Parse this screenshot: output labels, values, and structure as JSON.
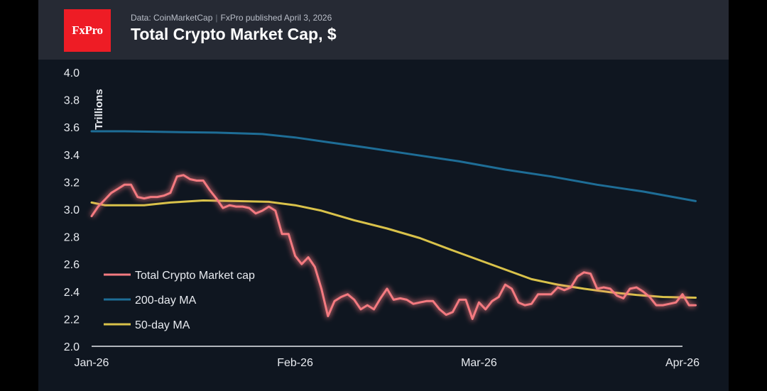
{
  "header": {
    "logo_text": "FxPro",
    "source": "Data: CoinMarketCap",
    "published": "FxPro published April 3, 2026",
    "title": "Total Crypto Market Cap, $"
  },
  "colors": {
    "background": "#0f1620",
    "header_background": "#262a34",
    "logo_red": "#ee1c25",
    "total": "#f47a80",
    "ma200": "#1e6d96",
    "ma50": "#d9c24a"
  },
  "chart_data": {
    "type": "line",
    "title": "Total Crypto Market Cap, $",
    "ylabel": "Trillions",
    "ylim": [
      2.0,
      4.0
    ],
    "yticks": [
      "2.0",
      "2.2",
      "2.4",
      "2.6",
      "2.8",
      "3.0",
      "3.2",
      "3.4",
      "3.6",
      "3.8",
      "4.0"
    ],
    "xlim": [
      "2026-01-01",
      "2026-04-01"
    ],
    "xticks": [
      {
        "label": "Jan-26",
        "date": "2026-01-01"
      },
      {
        "label": "Feb-26",
        "date": "2026-02-01"
      },
      {
        "label": "Mar-26",
        "date": "2026-03-01"
      },
      {
        "label": "Apr-26",
        "date": "2026-04-01"
      }
    ],
    "grid": false,
    "legend_position": "bottom-left",
    "series": [
      {
        "name": "Total Crypto Market cap",
        "color": "#f47a80",
        "glow": true,
        "points": [
          [
            "2026-01-01",
            2.95
          ],
          [
            "2026-01-02",
            3.02
          ],
          [
            "2026-01-03",
            3.07
          ],
          [
            "2026-01-04",
            3.12
          ],
          [
            "2026-01-05",
            3.15
          ],
          [
            "2026-01-06",
            3.18
          ],
          [
            "2026-01-07",
            3.18
          ],
          [
            "2026-01-08",
            3.09
          ],
          [
            "2026-01-09",
            3.08
          ],
          [
            "2026-01-10",
            3.09
          ],
          [
            "2026-01-11",
            3.09
          ],
          [
            "2026-01-12",
            3.1
          ],
          [
            "2026-01-13",
            3.12
          ],
          [
            "2026-01-14",
            3.24
          ],
          [
            "2026-01-15",
            3.25
          ],
          [
            "2026-01-16",
            3.22
          ],
          [
            "2026-01-17",
            3.21
          ],
          [
            "2026-01-18",
            3.21
          ],
          [
            "2026-01-19",
            3.14
          ],
          [
            "2026-01-20",
            3.08
          ],
          [
            "2026-01-21",
            3.01
          ],
          [
            "2026-01-22",
            3.03
          ],
          [
            "2026-01-23",
            3.02
          ],
          [
            "2026-01-24",
            3.02
          ],
          [
            "2026-01-25",
            3.01
          ],
          [
            "2026-01-26",
            2.97
          ],
          [
            "2026-01-27",
            2.99
          ],
          [
            "2026-01-28",
            3.02
          ],
          [
            "2026-01-29",
            2.99
          ],
          [
            "2026-01-30",
            2.82
          ],
          [
            "2026-01-31",
            2.82
          ],
          [
            "2026-02-01",
            2.66
          ],
          [
            "2026-02-02",
            2.6
          ],
          [
            "2026-02-03",
            2.65
          ],
          [
            "2026-02-04",
            2.58
          ],
          [
            "2026-02-05",
            2.42
          ],
          [
            "2026-02-06",
            2.22
          ],
          [
            "2026-02-07",
            2.33
          ],
          [
            "2026-02-08",
            2.36
          ],
          [
            "2026-02-09",
            2.38
          ],
          [
            "2026-02-10",
            2.34
          ],
          [
            "2026-02-11",
            2.27
          ],
          [
            "2026-02-12",
            2.3
          ],
          [
            "2026-02-13",
            2.27
          ],
          [
            "2026-02-14",
            2.35
          ],
          [
            "2026-02-15",
            2.42
          ],
          [
            "2026-02-16",
            2.34
          ],
          [
            "2026-02-17",
            2.35
          ],
          [
            "2026-02-18",
            2.34
          ],
          [
            "2026-02-19",
            2.31
          ],
          [
            "2026-02-20",
            2.32
          ],
          [
            "2026-02-21",
            2.33
          ],
          [
            "2026-02-22",
            2.33
          ],
          [
            "2026-02-23",
            2.27
          ],
          [
            "2026-02-24",
            2.23
          ],
          [
            "2026-02-25",
            2.25
          ],
          [
            "2026-02-26",
            2.34
          ],
          [
            "2026-02-27",
            2.34
          ],
          [
            "2026-02-28",
            2.2
          ],
          [
            "2026-03-01",
            2.32
          ],
          [
            "2026-03-02",
            2.27
          ],
          [
            "2026-03-03",
            2.33
          ],
          [
            "2026-03-04",
            2.36
          ],
          [
            "2026-03-05",
            2.45
          ],
          [
            "2026-03-06",
            2.42
          ],
          [
            "2026-03-07",
            2.32
          ],
          [
            "2026-03-08",
            2.3
          ],
          [
            "2026-03-09",
            2.31
          ],
          [
            "2026-03-10",
            2.38
          ],
          [
            "2026-03-11",
            2.38
          ],
          [
            "2026-03-12",
            2.38
          ],
          [
            "2026-03-13",
            2.43
          ],
          [
            "2026-03-14",
            2.41
          ],
          [
            "2026-03-15",
            2.43
          ],
          [
            "2026-03-16",
            2.51
          ],
          [
            "2026-03-17",
            2.54
          ],
          [
            "2026-03-18",
            2.53
          ],
          [
            "2026-03-19",
            2.42
          ],
          [
            "2026-03-20",
            2.43
          ],
          [
            "2026-03-21",
            2.42
          ],
          [
            "2026-03-22",
            2.37
          ],
          [
            "2026-03-23",
            2.35
          ],
          [
            "2026-03-24",
            2.42
          ],
          [
            "2026-03-25",
            2.43
          ],
          [
            "2026-03-26",
            2.4
          ],
          [
            "2026-03-27",
            2.36
          ],
          [
            "2026-03-28",
            2.3
          ],
          [
            "2026-03-29",
            2.3
          ],
          [
            "2026-03-30",
            2.31
          ],
          [
            "2026-03-31",
            2.32
          ],
          [
            "2026-04-01",
            2.38
          ],
          [
            "2026-04-02",
            2.3
          ],
          [
            "2026-04-03",
            2.3
          ]
        ]
      },
      {
        "name": "200-day MA",
        "color": "#1e6d96",
        "points": [
          [
            "2026-01-01",
            3.57
          ],
          [
            "2026-01-06",
            3.57
          ],
          [
            "2026-01-13",
            3.565
          ],
          [
            "2026-01-20",
            3.56
          ],
          [
            "2026-01-27",
            3.55
          ],
          [
            "2026-02-01",
            3.525
          ],
          [
            "2026-02-06",
            3.49
          ],
          [
            "2026-02-12",
            3.45
          ],
          [
            "2026-02-19",
            3.4
          ],
          [
            "2026-02-26",
            3.35
          ],
          [
            "2026-03-05",
            3.29
          ],
          [
            "2026-03-12",
            3.24
          ],
          [
            "2026-03-19",
            3.18
          ],
          [
            "2026-03-26",
            3.13
          ],
          [
            "2026-04-03",
            3.06
          ]
        ]
      },
      {
        "name": "50-day MA",
        "color": "#d9c24a",
        "points": [
          [
            "2026-01-01",
            3.05
          ],
          [
            "2026-01-03",
            3.03
          ],
          [
            "2026-01-06",
            3.03
          ],
          [
            "2026-01-09",
            3.03
          ],
          [
            "2026-01-13",
            3.05
          ],
          [
            "2026-01-18",
            3.065
          ],
          [
            "2026-01-23",
            3.06
          ],
          [
            "2026-01-28",
            3.055
          ],
          [
            "2026-02-01",
            3.03
          ],
          [
            "2026-02-05",
            2.99
          ],
          [
            "2026-02-10",
            2.92
          ],
          [
            "2026-02-15",
            2.86
          ],
          [
            "2026-02-20",
            2.79
          ],
          [
            "2026-02-25",
            2.7
          ],
          [
            "2026-03-01",
            2.63
          ],
          [
            "2026-03-05",
            2.56
          ],
          [
            "2026-03-09",
            2.49
          ],
          [
            "2026-03-13",
            2.45
          ],
          [
            "2026-03-17",
            2.42
          ],
          [
            "2026-03-21",
            2.395
          ],
          [
            "2026-03-25",
            2.375
          ],
          [
            "2026-03-29",
            2.36
          ],
          [
            "2026-04-03",
            2.355
          ]
        ]
      }
    ]
  }
}
